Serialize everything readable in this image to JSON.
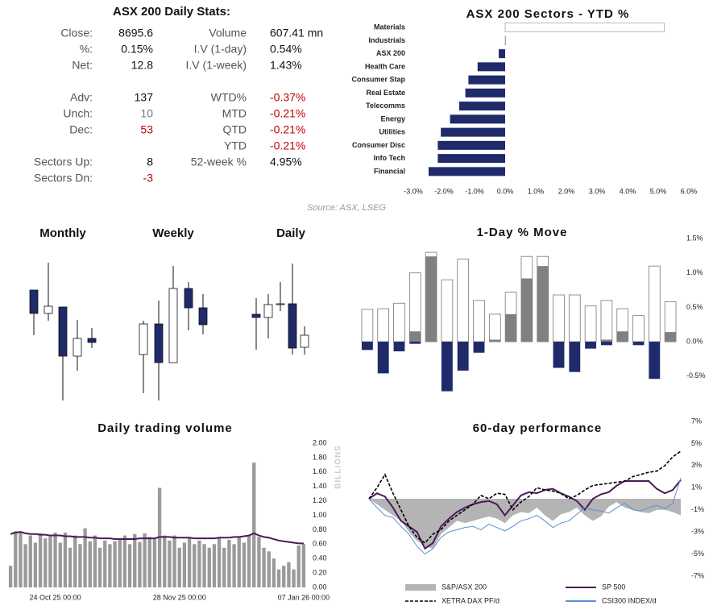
{
  "stats": {
    "title": "ASX 200 Daily Stats:",
    "rows": [
      [
        "Close:",
        "8695.6",
        "Volume",
        "607.41 mn"
      ],
      [
        "%:",
        "0.15%",
        "I.V (1-day)",
        "0.54%"
      ],
      [
        "Net:",
        "12.8",
        "I.V (1-week)",
        "1.43%"
      ],
      [
        "Adv:",
        "137",
        "WTD%",
        "-0.37%"
      ],
      [
        "Unch:",
        "10",
        "MTD",
        "-0.21%"
      ],
      [
        "Dec:",
        "53",
        "QTD",
        "-0.21%"
      ],
      [
        null,
        null,
        "YTD",
        "-0.21%"
      ],
      [
        "Sectors Up:",
        "8",
        "52-week %",
        "4.95%"
      ],
      [
        "Sectors Dn:",
        "-3",
        null,
        null
      ]
    ]
  },
  "source": "Source: ASX, LSEG",
  "chart_data": [
    {
      "type": "hbar",
      "title": "ASX 200 Sectors - YTD %",
      "categories": [
        "Materials",
        "Industrials",
        "ASX 200",
        "Health Care",
        "Consumer Stap",
        "Real Estate",
        "Telecomms",
        "Energy",
        "Utilities",
        "Consumer Disc",
        "Info Tech",
        "Financial"
      ],
      "values": [
        5.2,
        0.02,
        -0.21,
        -0.9,
        -1.2,
        -1.3,
        -1.5,
        -1.8,
        -2.1,
        -2.2,
        -2.2,
        -2.5
      ],
      "positive_color": "#ffffff",
      "negative_color": "#1f2a6b",
      "xlim": [
        -3,
        6
      ],
      "xticks": [
        {
          "value": -3,
          "label": "-3.0%"
        },
        {
          "value": -2,
          "label": "-2.0%"
        },
        {
          "value": -1,
          "label": "-1.0%"
        },
        {
          "value": 0,
          "label": "0.0%"
        },
        {
          "value": 1,
          "label": "1.0%"
        },
        {
          "value": 2,
          "label": "2.0%"
        },
        {
          "value": 3,
          "label": "3.0%"
        },
        {
          "value": 4,
          "label": "4.0%"
        },
        {
          "value": 5,
          "label": "5.0%"
        },
        {
          "value": 6,
          "label": "6.0%"
        }
      ]
    },
    {
      "type": "candlestick",
      "title": "Monthly",
      "open": [
        150,
        121,
        129,
        68,
        90
      ],
      "high": [
        150,
        184,
        129,
        113,
        103
      ],
      "low": [
        94,
        112,
        13,
        50,
        78
      ],
      "close": [
        121,
        130,
        68,
        90,
        85
      ],
      "up_color": "#ffffff",
      "down_color": "#1f2a6b",
      "ylim": [
        0,
        200
      ]
    },
    {
      "type": "candlestick",
      "title": "Weekly",
      "open": [
        70,
        108,
        60,
        152,
        128
      ],
      "high": [
        112,
        137,
        180,
        160,
        145
      ],
      "low": [
        22,
        13,
        60,
        100,
        95
      ],
      "close": [
        108,
        60,
        152,
        128,
        107
      ],
      "up_color": "#ffffff",
      "down_color": "#1f2a6b",
      "ylim": [
        0,
        200
      ]
    },
    {
      "type": "candlestick",
      "title": "Daily",
      "open": [
        120,
        116,
        132,
        133,
        79
      ],
      "high": [
        140,
        145,
        160,
        183,
        105
      ],
      "low": [
        76,
        90,
        124,
        70,
        70
      ],
      "close": [
        116,
        132,
        133,
        78,
        94
      ],
      "up_color": "#ffffff",
      "down_color": "#1f2a6b",
      "ylim": [
        0,
        200
      ]
    },
    {
      "type": "bar",
      "title": "1-Day % Move",
      "series": [
        {
          "color": "#ffffff",
          "values": [
            0.47,
            0.48,
            0.56,
            1.0,
            1.3,
            0.9,
            1.2,
            0.6,
            0.4,
            0.72,
            1.24,
            1.24,
            0.68,
            0.68,
            0.52,
            0.6,
            0.48,
            0.38,
            1.1,
            0.58
          ]
        },
        {
          "color": "#808080",
          "values": [
            0,
            0,
            0,
            0.15,
            1.24,
            0,
            0,
            0,
            0.03,
            0.4,
            0.92,
            1.1,
            0,
            0,
            0,
            0.03,
            0.15,
            0,
            0,
            0.14
          ]
        },
        {
          "color": "#1f2a6b",
          "values": [
            -0.12,
            -0.46,
            -0.14,
            -0.03,
            0,
            -0.72,
            -0.42,
            -0.16,
            0,
            0,
            0,
            0,
            -0.38,
            -0.44,
            -0.1,
            -0.05,
            0,
            -0.05,
            -0.54,
            0
          ]
        }
      ],
      "ylim": [
        -0.8,
        1.5
      ],
      "yticks": [
        {
          "value": 1.5,
          "label": "1.5%"
        },
        {
          "value": 1.0,
          "label": "1.0%"
        },
        {
          "value": 0.5,
          "label": "0.5%"
        },
        {
          "value": 0,
          "label": "0.0%"
        },
        {
          "value": -0.5,
          "label": "-0.5%"
        }
      ]
    },
    {
      "type": "bar",
      "title": "Daily trading volume",
      "y_label": "BILLIONS",
      "categories": [
        null,
        null,
        null,
        null,
        null,
        null,
        null,
        null,
        null,
        "24 Oct 25 00:00",
        null,
        null,
        null,
        null,
        null,
        null,
        null,
        null,
        null,
        null,
        null,
        null,
        null,
        null,
        null,
        null,
        null,
        null,
        null,
        null,
        null,
        null,
        null,
        null,
        "28 Nov 25 00:00",
        null,
        null,
        null,
        null,
        null,
        null,
        null,
        null,
        null,
        null,
        null,
        null,
        null,
        null,
        null,
        null,
        null,
        null,
        null,
        null,
        null,
        null,
        null,
        null,
        "07 Jan 26 00:00"
      ],
      "series": [
        {
          "color": "#9a9a9a",
          "values": [
            0.3,
            0.78,
            0.76,
            0.6,
            0.72,
            0.62,
            0.75,
            0.68,
            0.72,
            0.76,
            0.62,
            0.76,
            0.55,
            0.72,
            0.6,
            0.82,
            0.64,
            0.72,
            0.55,
            0.65,
            0.6,
            0.64,
            0.66,
            0.72,
            0.6,
            0.74,
            0.63,
            0.75,
            0.7,
            0.68,
            1.38,
            0.72,
            0.65,
            0.72,
            0.55,
            0.62,
            0.7,
            0.6,
            0.65,
            0.6,
            0.55,
            0.6,
            0.7,
            0.55,
            0.66,
            0.6,
            0.7,
            0.62,
            0.72,
            1.73,
            0.7,
            0.55,
            0.5,
            0.4,
            0.25,
            0.3,
            0.35,
            0.25,
            0.58,
            0.6
          ]
        },
        {
          "color": "#4b1a5a",
          "type": "line",
          "values": [
            0.74,
            0.76,
            0.77,
            0.75,
            0.74,
            0.74,
            0.73,
            0.73,
            0.72,
            0.72,
            0.72,
            0.71,
            0.71,
            0.7,
            0.7,
            0.7,
            0.69,
            0.69,
            0.68,
            0.68,
            0.68,
            0.67,
            0.67,
            0.67,
            0.67,
            0.67,
            0.68,
            0.68,
            0.68,
            0.68,
            0.7,
            0.7,
            0.7,
            0.69,
            0.69,
            0.69,
            0.69,
            0.68,
            0.68,
            0.68,
            0.68,
            0.68,
            0.69,
            0.69,
            0.69,
            0.7,
            0.7,
            0.71,
            0.72,
            0.75,
            0.72,
            0.7,
            0.69,
            0.67,
            0.65,
            0.64,
            0.63,
            0.62,
            0.61,
            0.61
          ]
        }
      ],
      "ylim": [
        0,
        2
      ],
      "yticks": [
        {
          "value": 2,
          "label": "2.00"
        },
        {
          "value": 1.8,
          "label": "1.80"
        },
        {
          "value": 1.6,
          "label": "1.60"
        },
        {
          "value": 1.4,
          "label": "1.40"
        },
        {
          "value": 1.2,
          "label": "1.20"
        },
        {
          "value": 1,
          "label": "1.00"
        },
        {
          "value": 0.8,
          "label": "0.80"
        },
        {
          "value": 0.6,
          "label": "0.60"
        },
        {
          "value": 0.4,
          "label": "0.40"
        },
        {
          "value": 0.2,
          "label": "0.20"
        },
        {
          "value": 0,
          "label": "0.00"
        }
      ]
    },
    {
      "type": "line",
      "title": "60-day performance",
      "series": [
        {
          "name": "S&P/ASX 200",
          "color": "#b4b4b4",
          "type": "area",
          "values": [
            0,
            -0.5,
            -1.0,
            -1.5,
            -2.0,
            -3.0,
            -3.8,
            -4.3,
            -4.5,
            -3.2,
            -2.6,
            -2.0,
            -2.2,
            -2.0,
            -1.8,
            -1.6,
            -1.8,
            -2.2,
            -1.5,
            -1.2,
            -1.3,
            -0.8,
            -1.5,
            -2.0,
            -1.4,
            -1.2,
            -0.8,
            -1.5,
            -2.0,
            -1.6,
            -0.7,
            -0.3,
            -0.8,
            -1.0,
            -1.2,
            -1.3,
            -1.0,
            -1.0,
            -1.2,
            -1.5
          ]
        },
        {
          "name": "SP 500",
          "color": "#4b1a5a",
          "values": [
            0,
            0.5,
            0.2,
            -0.8,
            -2.0,
            -2.5,
            -3.0,
            -4.5,
            -4.0,
            -2.5,
            -1.8,
            -1.2,
            -0.8,
            -0.5,
            -0.3,
            -0.2,
            -0.5,
            -1.5,
            -0.6,
            0.3,
            0.6,
            0.5,
            0.8,
            0.9,
            0.5,
            0.2,
            -0.2,
            -1.0,
            0.0,
            0.4,
            0.6,
            1.2,
            1.6,
            1.6,
            1.6,
            1.6,
            0.9,
            0.5,
            0.8,
            1.7
          ]
        },
        {
          "name": "XETRA DAX PF/d",
          "color": "#000000",
          "dashed": true,
          "values": [
            0,
            1.0,
            2.2,
            0.5,
            -1.0,
            -2.5,
            -3.5,
            -4.0,
            -3.2,
            -2.8,
            -2.0,
            -1.5,
            -1.0,
            -0.5,
            0.3,
            0.0,
            0.5,
            0.4,
            -1.0,
            -0.3,
            0.2,
            1.0,
            0.8,
            0.7,
            0.5,
            0.0,
            0.3,
            0.8,
            1.2,
            1.3,
            1.4,
            1.5,
            1.6,
            2.0,
            2.2,
            2.4,
            2.5,
            3.0,
            3.8,
            4.3
          ]
        },
        {
          "name": "CSI300 INDEX/d",
          "color": "#5b8fd6",
          "values": [
            0,
            -0.8,
            -1.5,
            -1.7,
            -2.5,
            -3.2,
            -4.3,
            -5.0,
            -4.5,
            -3.5,
            -3.0,
            -2.8,
            -2.6,
            -2.5,
            -2.8,
            -2.3,
            -2.6,
            -2.9,
            -2.5,
            -2.0,
            -1.8,
            -1.5,
            -2.0,
            -2.6,
            -2.2,
            -2.0,
            -1.4,
            -0.8,
            -1.0,
            -1.1,
            -1.3,
            -0.8,
            -0.4,
            -1.0,
            -1.1,
            -0.8,
            -0.6,
            -0.9,
            -0.4,
            1.9
          ]
        }
      ],
      "ylim": [
        -7,
        7
      ],
      "yticks": [
        {
          "value": 7,
          "label": "7%"
        },
        {
          "value": 5,
          "label": "5%"
        },
        {
          "value": 3,
          "label": "3%"
        },
        {
          "value": 1,
          "label": "1%"
        },
        {
          "value": -1,
          "label": "-1%"
        },
        {
          "value": -3,
          "label": "-3%"
        },
        {
          "value": -5,
          "label": "-5%"
        },
        {
          "value": -7,
          "label": "-7%"
        }
      ]
    }
  ]
}
